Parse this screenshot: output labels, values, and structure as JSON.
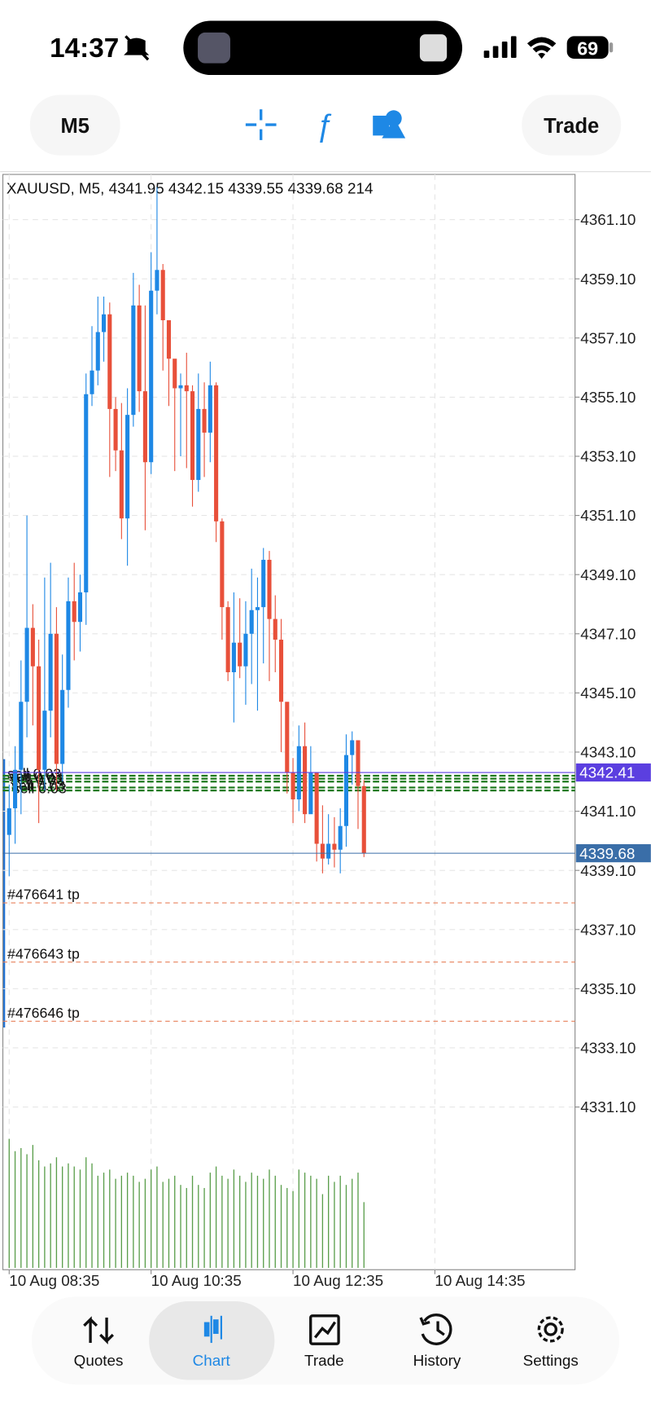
{
  "status_bar": {
    "time": "14:37",
    "battery": "69"
  },
  "toolbar": {
    "timeframe": "M5",
    "trade": "Trade"
  },
  "chart_data": {
    "type": "candlestick",
    "title": "XAUUSD, M5, 4341.95 4342.15 4339.55 4339.68 214",
    "up_color": "#1e88e5",
    "down_color": "#e8503a",
    "volume_color": "#5a9e4b",
    "grid": true,
    "x": [
      0,
      1,
      2,
      3,
      4,
      5,
      6,
      7,
      8,
      9,
      10,
      11,
      12,
      13,
      14,
      15,
      16,
      17,
      18,
      19,
      20,
      21,
      22,
      23,
      24,
      25,
      26,
      27,
      28,
      29,
      30,
      31,
      32,
      33,
      34,
      35,
      36,
      37,
      38,
      39,
      40,
      41,
      42,
      43,
      44,
      45,
      46,
      47,
      48,
      49,
      50,
      51,
      52,
      53,
      54,
      55,
      56,
      57,
      58,
      59,
      60
    ],
    "open": [
      4340.3,
      4341.2,
      4342.5,
      4344.8,
      4347.3,
      4346.0,
      4342.5,
      4344.5,
      4347.1,
      4342.7,
      4345.2,
      4348.2,
      4347.5,
      4348.5,
      4355.2,
      4356.0,
      4357.3,
      4357.9,
      4354.7,
      4353.3,
      4351.0,
      4354.5,
      4358.2,
      4355.3,
      4352.9,
      4358.7,
      4359.4,
      4357.7,
      4356.4,
      4355.4,
      4355.5,
      4355.3,
      4352.3,
      4354.7,
      4353.9,
      4355.5,
      4350.9,
      4348.0,
      4345.8,
      4346.8,
      4346.0,
      4347.1,
      4347.9,
      4348.0,
      4349.6,
      4347.6,
      4346.9,
      4344.8,
      4342.4,
      4341.5,
      4343.3,
      4341.0,
      4342.4,
      4340.0,
      4339.5,
      4340.0,
      4339.8,
      4340.6,
      4343.0,
      4343.5,
      4341.95
    ],
    "high": [
      4342.0,
      4343.3,
      4346.2,
      4351.1,
      4348.1,
      4346.9,
      4349.0,
      4349.5,
      4348.0,
      4346.4,
      4349.0,
      4349.5,
      4349.1,
      4355.9,
      4357.5,
      4358.5,
      4358.5,
      4358.3,
      4355.1,
      4354.9,
      4355.4,
      4359.3,
      4358.9,
      4358.2,
      4360.0,
      4362.2,
      4359.6,
      4357.7,
      4356.1,
      4355.9,
      4356.6,
      4355.5,
      4355.9,
      4355.6,
      4356.3,
      4355.6,
      4351.0,
      4348.2,
      4348.5,
      4348.3,
      4348.2,
      4349.3,
      4349.0,
      4350.0,
      4349.9,
      4348.4,
      4347.6,
      4344.5,
      4342.9,
      4344.0,
      4344.1,
      4343.3,
      4342.4,
      4341.3,
      4341.0,
      4340.9,
      4341.2,
      4343.7,
      4343.8,
      4343.2,
      4342.15
    ],
    "low": [
      4338.9,
      4340.0,
      4341.0,
      4343.6,
      4344.0,
      4340.7,
      4341.8,
      4343.6,
      4341.8,
      4342.1,
      4344.6,
      4346.2,
      4346.5,
      4347.4,
      4354.8,
      4355.5,
      4356.3,
      4352.4,
      4352.6,
      4350.3,
      4349.4,
      4354.1,
      4354.6,
      4350.6,
      4352.5,
      4357.9,
      4356.0,
      4354.8,
      4352.6,
      4353.1,
      4352.7,
      4351.4,
      4351.9,
      4352.4,
      4352.9,
      4350.2,
      4346.9,
      4345.5,
      4344.1,
      4345.6,
      4344.7,
      4345.4,
      4344.5,
      4346.1,
      4345.5,
      4345.8,
      4343.1,
      4341.7,
      4340.7,
      4341.1,
      4340.7,
      4341.2,
      4339.4,
      4339.0,
      4339.3,
      4339.2,
      4339.0,
      4339.9,
      4342.0,
      4340.5,
      4339.55
    ],
    "close": [
      4341.2,
      4342.5,
      4344.8,
      4347.3,
      4346.0,
      4342.5,
      4344.5,
      4347.1,
      4342.7,
      4345.2,
      4348.2,
      4347.5,
      4348.5,
      4355.2,
      4356.0,
      4357.3,
      4357.9,
      4354.7,
      4353.3,
      4351.0,
      4354.5,
      4358.2,
      4355.3,
      4352.9,
      4358.7,
      4359.4,
      4357.7,
      4356.4,
      4355.4,
      4355.5,
      4355.3,
      4352.3,
      4354.7,
      4353.9,
      4355.5,
      4350.9,
      4348.0,
      4345.8,
      4346.8,
      4346.0,
      4347.1,
      4347.9,
      4348.0,
      4349.6,
      4347.6,
      4346.9,
      4344.8,
      4342.4,
      4341.5,
      4343.3,
      4341.0,
      4342.4,
      4340.0,
      4339.5,
      4340.0,
      4339.8,
      4340.6,
      4343.0,
      4343.5,
      4341.95,
      4339.68
    ],
    "volume": [
      420,
      380,
      390,
      370,
      400,
      350,
      330,
      340,
      360,
      330,
      340,
      330,
      320,
      360,
      340,
      300,
      310,
      320,
      290,
      300,
      310,
      300,
      280,
      290,
      320,
      330,
      280,
      290,
      300,
      270,
      260,
      300,
      270,
      260,
      310,
      330,
      300,
      290,
      320,
      300,
      280,
      310,
      300,
      290,
      320,
      300,
      270,
      260,
      250,
      320,
      310,
      300,
      290,
      240,
      300,
      280,
      300,
      270,
      290,
      310,
      214
    ],
    "volume_ylim": [
      0,
      500
    ],
    "xlim": [
      -1.07,
      95.7
    ],
    "xticks": [
      {
        "value": 0,
        "label": "10 Aug 08:35"
      },
      {
        "value": 24,
        "label": "10 Aug 10:35"
      },
      {
        "value": 48,
        "label": "10 Aug 12:35"
      },
      {
        "value": 72,
        "label": "10 Aug 14:35"
      }
    ],
    "ylim": [
      4325.6,
      4362.63
    ],
    "yticks": [
      {
        "value": 4361.1,
        "label": "4361.10"
      },
      {
        "value": 4359.1,
        "label": "4359.10"
      },
      {
        "value": 4357.1,
        "label": "4357.10"
      },
      {
        "value": 4355.1,
        "label": "4355.10"
      },
      {
        "value": 4353.1,
        "label": "4353.10"
      },
      {
        "value": 4351.1,
        "label": "4351.10"
      },
      {
        "value": 4349.1,
        "label": "4349.10"
      },
      {
        "value": 4347.1,
        "label": "4347.10"
      },
      {
        "value": 4345.1,
        "label": "4345.10"
      },
      {
        "value": 4343.1,
        "label": "4343.10"
      },
      {
        "value": 4341.1,
        "label": "4341.10"
      },
      {
        "value": 4339.1,
        "label": "4339.10"
      },
      {
        "value": 4337.1,
        "label": "4337.10"
      },
      {
        "value": 4335.1,
        "label": "4335.10"
      },
      {
        "value": 4333.1,
        "label": "4333.10"
      },
      {
        "value": 4331.1,
        "label": "4331.10"
      }
    ],
    "price_lines": [
      {
        "value": 4342.41,
        "label": "4342.41",
        "color": "#5b3fe0"
      },
      {
        "value": 4339.68,
        "label": "4339.68",
        "color": "#3a6ea8"
      }
    ],
    "positions": [
      {
        "value": 4342.3,
        "label": "sell 0.03",
        "color": "#1f7a1f"
      },
      {
        "value": 4342.2,
        "label": "sell 0.03",
        "color": "#1f7a1f"
      },
      {
        "value": 4342.1,
        "label": "sell 0.03",
        "color": "#1f7a1f"
      },
      {
        "value": 4341.9,
        "label": "sell 0.03",
        "color": "#1f7a1f"
      },
      {
        "value": 4341.8,
        "label": "sell 0.03",
        "color": "#1f7a1f"
      }
    ],
    "take_profits": [
      {
        "value": 4338.0,
        "label": "#476641 tp",
        "color": "#e8805a"
      },
      {
        "value": 4336.0,
        "label": "#476643 tp",
        "color": "#e8805a"
      },
      {
        "value": 4334.0,
        "label": "#476646 tp",
        "color": "#e8805a"
      }
    ]
  },
  "nav": {
    "items": [
      "Quotes",
      "Chart",
      "Trade",
      "History",
      "Settings"
    ],
    "active": 1
  }
}
